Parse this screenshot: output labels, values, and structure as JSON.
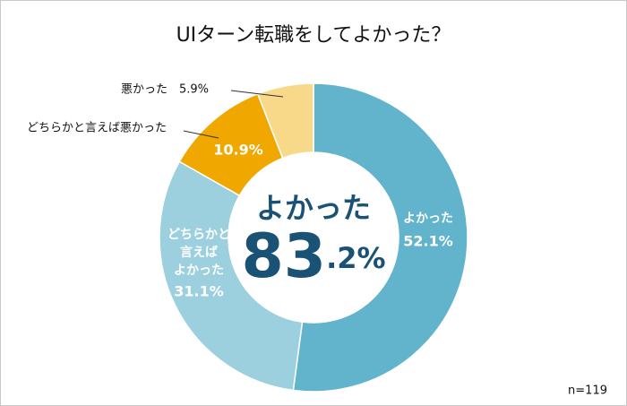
{
  "chart_data": {
    "type": "donut",
    "title": "UIターン転職をしてよかった？",
    "categories": [
      "よかった",
      "どちらかと\n言えば\nよかった",
      "どちらかと言えば悪かった",
      "悪かった"
    ],
    "values": [
      52.1,
      31.1,
      10.9,
      5.9
    ],
    "value_labels": [
      "52.1%",
      "31.1%",
      "10.9%",
      "5.9%"
    ],
    "colors": [
      "#62b3cc",
      "#9dd0de",
      "#f0a800",
      "#f8d98a"
    ],
    "center_label": "よかった",
    "center_value": 83.2,
    "center_value_label": "83.2%",
    "note": "n=119"
  }
}
